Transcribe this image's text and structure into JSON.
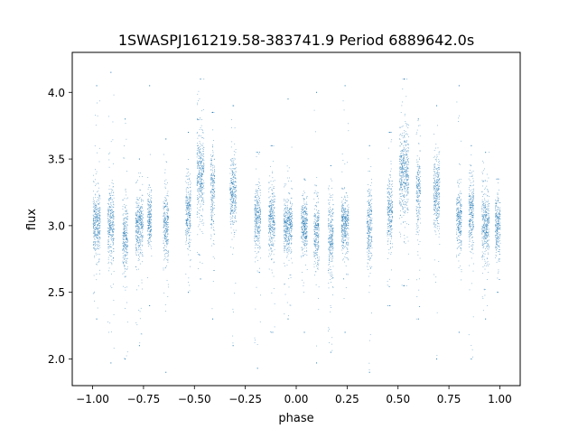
{
  "chart_data": {
    "type": "scatter",
    "title": "1SWASPJ161219.58-383741.9 Period 6889642.0s",
    "xlabel": "phase",
    "ylabel": "flux",
    "xlim": [
      -1.1,
      1.1
    ],
    "ylim": [
      1.8,
      4.3
    ],
    "grid": false,
    "legend": "none",
    "marker_color": "#1f77b4",
    "x_ticks": [
      -1.0,
      -0.75,
      -0.5,
      -0.25,
      0.0,
      0.25,
      0.5,
      0.75,
      1.0
    ],
    "x_tick_labels": [
      "−1.00",
      "−0.75",
      "−0.50",
      "−0.25",
      "0.00",
      "0.25",
      "0.50",
      "0.75",
      "1.00"
    ],
    "y_ticks": [
      2.0,
      2.5,
      3.0,
      3.5,
      4.0
    ],
    "y_tick_labels": [
      "2.0",
      "2.5",
      "3.0",
      "3.5",
      "4.0"
    ],
    "phase_clusters": [
      {
        "phase": -0.98,
        "width": 0.035,
        "median": 3.02,
        "spread": 0.12,
        "min": 2.3,
        "max": 4.05
      },
      {
        "phase": -0.91,
        "width": 0.03,
        "median": 3.0,
        "spread": 0.14,
        "min": 1.97,
        "max": 4.15
      },
      {
        "phase": -0.84,
        "width": 0.025,
        "median": 2.92,
        "spread": 0.13,
        "min": 2.0,
        "max": 3.8
      },
      {
        "phase": -0.77,
        "width": 0.035,
        "median": 3.0,
        "spread": 0.11,
        "min": 2.1,
        "max": 3.5
      },
      {
        "phase": -0.72,
        "width": 0.02,
        "median": 3.05,
        "spread": 0.1,
        "min": 2.4,
        "max": 4.05
      },
      {
        "phase": -0.64,
        "width": 0.025,
        "median": 3.0,
        "spread": 0.14,
        "min": 1.9,
        "max": 3.65
      },
      {
        "phase": -0.53,
        "width": 0.025,
        "median": 3.1,
        "spread": 0.12,
        "min": 2.5,
        "max": 3.7
      },
      {
        "phase": -0.47,
        "width": 0.035,
        "median": 3.38,
        "spread": 0.15,
        "min": 2.6,
        "max": 4.1
      },
      {
        "phase": -0.41,
        "width": 0.02,
        "median": 3.25,
        "spread": 0.16,
        "min": 2.3,
        "max": 3.85
      },
      {
        "phase": -0.31,
        "width": 0.03,
        "median": 3.25,
        "spread": 0.13,
        "min": 2.1,
        "max": 3.9
      },
      {
        "phase": -0.19,
        "width": 0.03,
        "median": 3.05,
        "spread": 0.12,
        "min": 1.93,
        "max": 3.55
      },
      {
        "phase": -0.12,
        "width": 0.03,
        "median": 3.05,
        "spread": 0.13,
        "min": 2.2,
        "max": 3.6
      },
      {
        "phase": -0.04,
        "width": 0.04,
        "median": 3.0,
        "spread": 0.1,
        "min": 2.3,
        "max": 3.95
      },
      {
        "phase": 0.04,
        "width": 0.03,
        "median": 3.0,
        "spread": 0.1,
        "min": 2.2,
        "max": 3.35
      },
      {
        "phase": 0.1,
        "width": 0.025,
        "median": 2.95,
        "spread": 0.13,
        "min": 1.97,
        "max": 4.0
      },
      {
        "phase": 0.17,
        "width": 0.025,
        "median": 2.92,
        "spread": 0.13,
        "min": 2.05,
        "max": 3.45
      },
      {
        "phase": 0.24,
        "width": 0.035,
        "median": 3.0,
        "spread": 0.1,
        "min": 2.2,
        "max": 4.05
      },
      {
        "phase": 0.36,
        "width": 0.025,
        "median": 3.0,
        "spread": 0.14,
        "min": 1.9,
        "max": 3.6
      },
      {
        "phase": 0.46,
        "width": 0.025,
        "median": 3.1,
        "spread": 0.13,
        "min": 2.4,
        "max": 3.7
      },
      {
        "phase": 0.53,
        "width": 0.045,
        "median": 3.4,
        "spread": 0.16,
        "min": 2.55,
        "max": 4.1
      },
      {
        "phase": 0.6,
        "width": 0.02,
        "median": 3.25,
        "spread": 0.15,
        "min": 2.3,
        "max": 3.8
      },
      {
        "phase": 0.69,
        "width": 0.03,
        "median": 3.25,
        "spread": 0.14,
        "min": 2.0,
        "max": 3.9
      },
      {
        "phase": 0.8,
        "width": 0.025,
        "median": 3.05,
        "spread": 0.12,
        "min": 2.2,
        "max": 4.05
      },
      {
        "phase": 0.86,
        "width": 0.025,
        "median": 3.1,
        "spread": 0.13,
        "min": 2.0,
        "max": 3.6
      },
      {
        "phase": 0.93,
        "width": 0.035,
        "median": 3.0,
        "spread": 0.12,
        "min": 2.3,
        "max": 3.55
      },
      {
        "phase": 0.99,
        "width": 0.025,
        "median": 3.0,
        "spread": 0.11,
        "min": 2.5,
        "max": 3.35
      }
    ]
  }
}
